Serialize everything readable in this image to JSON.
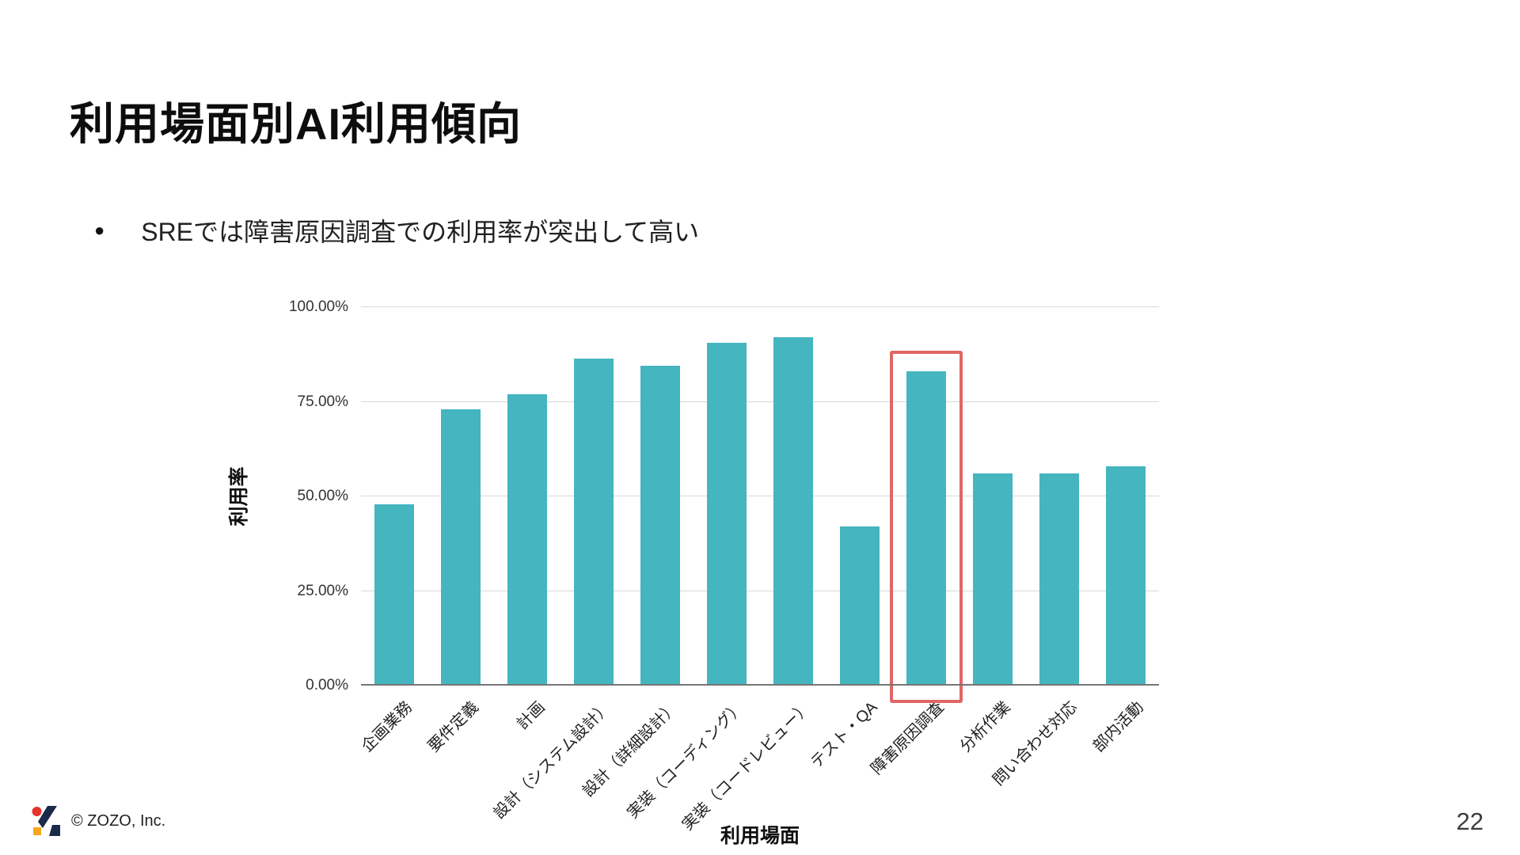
{
  "slide": {
    "title": "利用場面別AI利用傾向",
    "bullet_marker": "●",
    "bullet_text": "SREでは障害原因調査での利用率が突出して高い",
    "footer": {
      "copyright": "© ZOZO, Inc.",
      "page_number": "22"
    }
  },
  "chart_data": {
    "type": "bar",
    "title": "",
    "xlabel": "利用場面",
    "ylabel": "利用率",
    "categories": [
      "企画業務",
      "要件定義",
      "計画",
      "設計（システム設計）",
      "設計（詳細設計）",
      "実装（コーディング）",
      "実装（コードレビュー）",
      "テスト・QA",
      "障害原因調査",
      "分析作業",
      "問い合わせ対応",
      "部内活動"
    ],
    "values": [
      48,
      73,
      77,
      86.5,
      84.5,
      90.5,
      92,
      42,
      83,
      56,
      56,
      58
    ],
    "ylim": [
      0,
      100
    ],
    "yticks": [
      0,
      25,
      50,
      75,
      100
    ],
    "ytick_labels": [
      "0.00%",
      "25.00%",
      "50.00%",
      "75.00%",
      "100.00%"
    ],
    "bar_color": "#45b5bf",
    "grid": true,
    "legend": null,
    "highlight": {
      "index": 8,
      "color": "#e06666",
      "note": "障害原因調査 bar outlined in red"
    },
    "logo_colors": {
      "red": "#e8332a",
      "navy": "#1b2a4a",
      "yellow": "#f5a81c"
    }
  }
}
